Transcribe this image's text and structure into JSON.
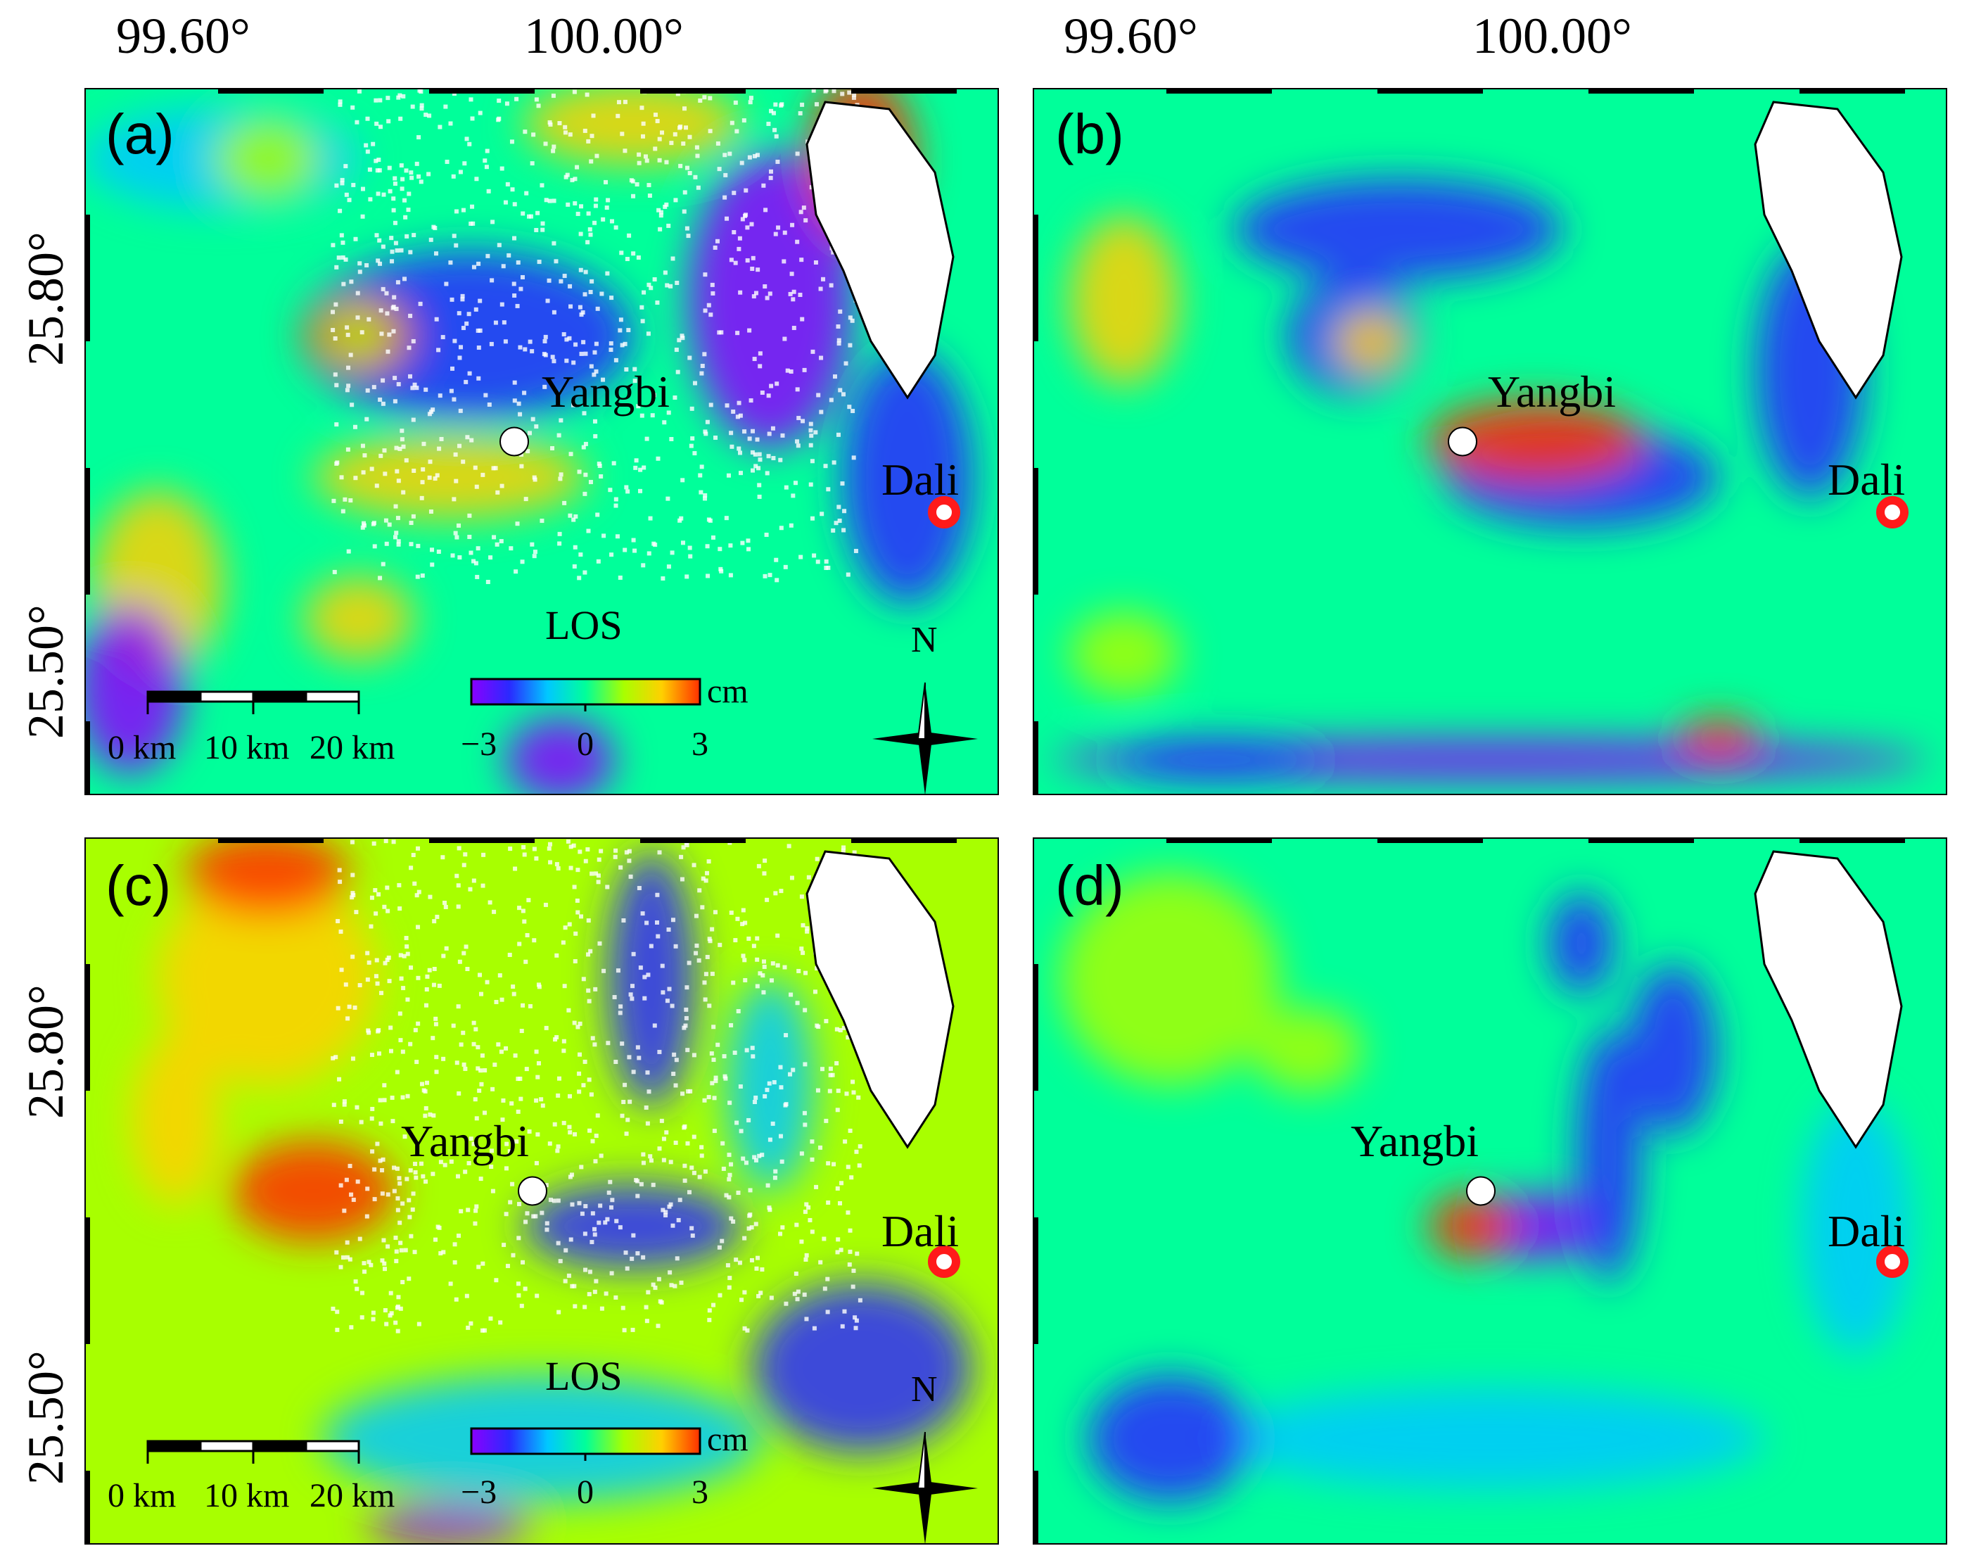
{
  "axes": {
    "lon_labels": [
      "99.60°",
      "100.00°"
    ],
    "lat_labels": [
      "25.80°",
      "25.50°"
    ]
  },
  "panels": [
    {
      "id": "a",
      "label": "(a)",
      "cities": {
        "yangbi": "Yangbi",
        "dali": "Dali"
      },
      "legend": {
        "title": "LOS",
        "unit": "cm",
        "ticks": [
          "−3",
          "0",
          "3"
        ]
      },
      "scalebar": {
        "ticks": [
          "0 km",
          "10 km",
          "20 km"
        ]
      },
      "north": "N"
    },
    {
      "id": "b",
      "label": "(b)",
      "cities": {
        "yangbi": "Yangbi",
        "dali": "Dali"
      }
    },
    {
      "id": "c",
      "label": "(c)",
      "cities": {
        "yangbi": "Yangbi",
        "dali": "Dali"
      },
      "legend": {
        "title": "LOS",
        "unit": "cm",
        "ticks": [
          "−3",
          "0",
          "3"
        ]
      },
      "scalebar": {
        "ticks": [
          "0 km",
          "10 km",
          "20 km"
        ]
      },
      "north": "N"
    },
    {
      "id": "d",
      "label": "(d)",
      "cities": {
        "yangbi": "Yangbi",
        "dali": "Dali"
      }
    }
  ],
  "colormap": [
    "#8a00ff",
    "#2a2aff",
    "#00c8ff",
    "#00ff9a",
    "#a8ff00",
    "#ffd000",
    "#ff3000"
  ],
  "colors": {
    "dali_marker": "#ff1a1a",
    "lake": "#ffffff",
    "frame": "#000000"
  }
}
